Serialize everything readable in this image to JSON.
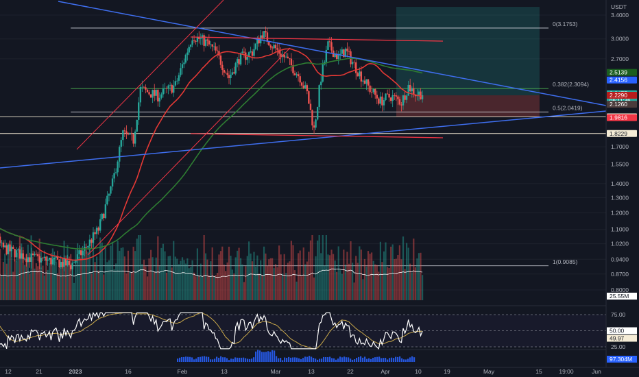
{
  "chart_data": {
    "type": "candlestick",
    "symbol_pair_unit": "USDT",
    "y_axis": {
      "scale": "log",
      "ticks": [
        "3.4000",
        "3.0000",
        "2.7000",
        "2.5139",
        "2.4156",
        "2.2477",
        "2.2290",
        "2.1260",
        "1.9900",
        "1.9816",
        "1.8229",
        "1.7000",
        "1.5500",
        "1.4000",
        "1.3000",
        "1.2000",
        "1.1000",
        "1.0200",
        "0.9400",
        "0.8700",
        "0.8000"
      ],
      "plain_ticks": [
        "3.4000",
        "3.0000",
        "2.7000",
        "1.7000",
        "1.5500",
        "1.4000",
        "1.3000",
        "1.2000",
        "1.1000",
        "1.0200",
        "0.9400",
        "0.8700",
        "0.8000"
      ],
      "range": [
        0.8,
        3.6
      ]
    },
    "x_axis": {
      "ticks": [
        "12",
        "21",
        "2023",
        "16",
        "Feb",
        "13",
        "Mar",
        "13",
        "22",
        "Apr",
        "10",
        "19",
        "May",
        "15",
        "19:00",
        "Jun"
      ]
    },
    "price_tags": [
      {
        "value": "2.5139",
        "bg": "#1b5e20",
        "fg": "#ffffff"
      },
      {
        "value": "2.4156",
        "bg": "#2962ff",
        "fg": "#ffffff"
      },
      {
        "value": "2.2477",
        "sub": "06:11:36",
        "bg": "#26a69a",
        "fg": "#ffffff"
      },
      {
        "value": "2.2290",
        "bg": "#b71c1c",
        "fg": "#ffffff"
      },
      {
        "value": "2.1260",
        "bg": "#4a3b3b",
        "fg": "#ffffff"
      },
      {
        "value": "1.9900",
        "bg": "#f5ecd6",
        "fg": "#131722"
      },
      {
        "value": "1.9816",
        "bg": "#f23645",
        "fg": "#ffffff"
      },
      {
        "value": "1.8229",
        "bg": "#f5ecd6",
        "fg": "#131722"
      }
    ],
    "fibonacci": [
      {
        "label": "0(3.1753)",
        "price": 3.1753
      },
      {
        "label": "0.382(2.3094)",
        "price": 2.3094
      },
      {
        "label": "0.5(2.0419)",
        "price": 2.0419
      },
      {
        "label": "1(0.9085)",
        "price": 0.9085
      }
    ],
    "horizontal_levels": [
      1.99,
      1.8229
    ],
    "position_tool": {
      "entry": 2.229,
      "take_profit": 3.55,
      "stop_loss": 1.99
    },
    "volume": {
      "ma_label": "25.55M",
      "tag_bg": "#ffffff",
      "tag_fg": "#131722"
    },
    "rsi": {
      "levels": [
        "75.00",
        "50.00",
        "25.00"
      ],
      "value": "50.00",
      "ma": "49.97"
    },
    "volume_profile_label": "97.304M",
    "colors": {
      "up": "#26a69a",
      "down": "#ef5350",
      "ma_fast": "#e53935",
      "ma_slow": "#2e7d32",
      "trendline": "#3f6ff0",
      "channel": "#f23645",
      "fib": "#d1d4dc",
      "rsi": "#ffffff",
      "rsi_ma": "#c9a84a",
      "bg": "#131722"
    },
    "key_points": [
      {
        "date": "2022-12-01",
        "price": 1.02
      },
      {
        "date": "2022-12-05",
        "price": 1.18
      },
      {
        "date": "2022-12-10",
        "price": 1.0
      },
      {
        "date": "2022-12-18",
        "price": 0.95
      },
      {
        "date": "2022-12-26",
        "price": 0.93
      },
      {
        "date": "2022-12-31",
        "price": 0.91
      },
      {
        "date": "2023-01-04",
        "price": 0.99
      },
      {
        "date": "2023-01-08",
        "price": 1.1
      },
      {
        "date": "2023-01-12",
        "price": 1.4
      },
      {
        "date": "2023-01-15",
        "price": 1.82
      },
      {
        "date": "2023-01-18",
        "price": 1.76
      },
      {
        "date": "2023-01-20",
        "price": 2.3
      },
      {
        "date": "2023-01-25",
        "price": 2.22
      },
      {
        "date": "2023-01-30",
        "price": 2.35
      },
      {
        "date": "2023-02-04",
        "price": 3.05
      },
      {
        "date": "2023-02-08",
        "price": 2.95
      },
      {
        "date": "2023-02-11",
        "price": 2.8
      },
      {
        "date": "2023-02-15",
        "price": 2.45
      },
      {
        "date": "2023-02-18",
        "price": 2.7
      },
      {
        "date": "2023-02-22",
        "price": 2.8
      },
      {
        "date": "2023-02-25",
        "price": 3.1
      },
      {
        "date": "2023-02-28",
        "price": 2.9
      },
      {
        "date": "2023-03-04",
        "price": 2.7
      },
      {
        "date": "2023-03-08",
        "price": 2.45
      },
      {
        "date": "2023-03-10",
        "price": 2.25
      },
      {
        "date": "2023-03-12",
        "price": 1.86
      },
      {
        "date": "2023-03-14",
        "price": 2.45
      },
      {
        "date": "2023-03-16",
        "price": 2.9
      },
      {
        "date": "2023-03-19",
        "price": 2.72
      },
      {
        "date": "2023-03-21",
        "price": 2.82
      },
      {
        "date": "2023-03-25",
        "price": 2.5
      },
      {
        "date": "2023-03-28",
        "price": 2.3
      },
      {
        "date": "2023-03-31",
        "price": 2.16
      },
      {
        "date": "2023-04-03",
        "price": 2.22
      },
      {
        "date": "2023-04-06",
        "price": 2.15
      },
      {
        "date": "2023-04-08",
        "price": 2.34
      },
      {
        "date": "2023-04-10",
        "price": 2.25
      },
      {
        "date": "2023-04-12",
        "price": 2.25
      }
    ]
  }
}
